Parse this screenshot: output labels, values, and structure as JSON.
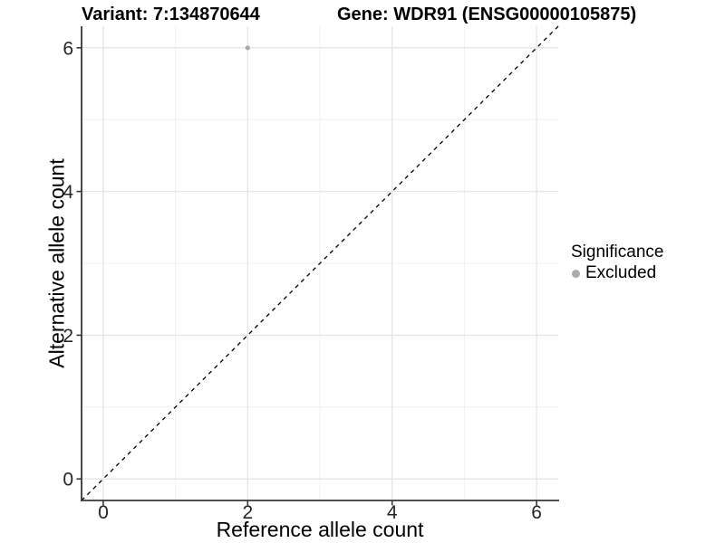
{
  "chart_data": {
    "type": "scatter",
    "title_left": "Variant: 7:134870644",
    "title_right": "Gene: WDR91 (ENSG00000105875)",
    "xlabel": "Reference allele count",
    "ylabel": "Alternative allele count",
    "xlim": [
      -0.3,
      6.3
    ],
    "ylim": [
      -0.3,
      6.3
    ],
    "xticks": [
      0,
      2,
      4,
      6
    ],
    "yticks": [
      0,
      2,
      4,
      6
    ],
    "xminor": [
      1,
      3,
      5
    ],
    "yminor": [
      1,
      3,
      5
    ],
    "grid": true,
    "points": [
      {
        "x": 2,
        "y": 6,
        "series": "Excluded"
      }
    ],
    "abline": {
      "slope": 1,
      "intercept": 0,
      "linetype": "dashed"
    },
    "legend": {
      "title": "Significance",
      "position": "right",
      "items": [
        {
          "label": "Excluded",
          "color": "#ababab"
        }
      ]
    }
  },
  "colors": {
    "background": "#ffffff",
    "point": "#ababab",
    "grid_major": "#e4e4e4",
    "grid_minor": "#f0f0f0",
    "axis_line": "#383838",
    "tick_mark": "#383838",
    "tick_label": "#262626",
    "dashed_line": "#000000",
    "text": "#000000"
  }
}
